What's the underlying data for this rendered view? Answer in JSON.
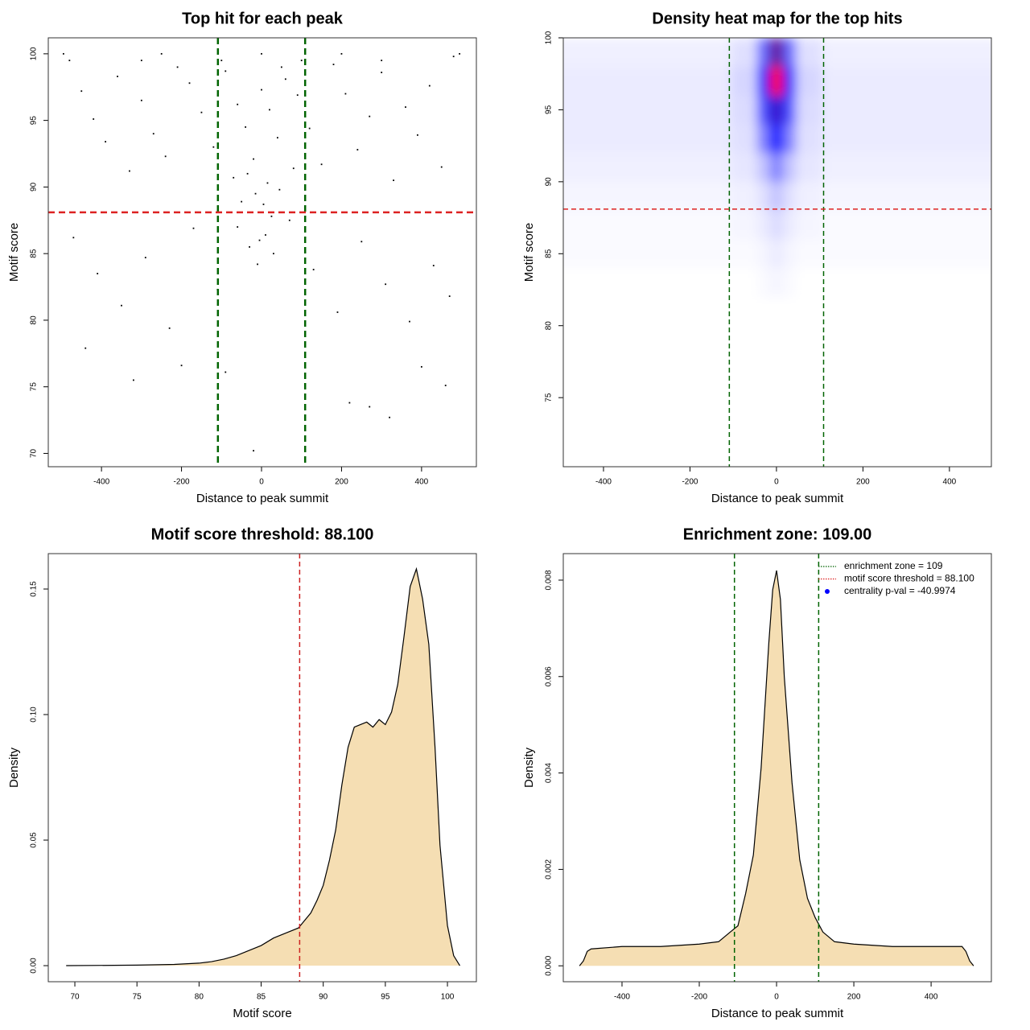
{
  "chart_data": [
    {
      "type": "scatter",
      "title": "Top hit for each peak",
      "xlabel": "Distance to peak summit",
      "ylabel": "Motif score",
      "x": [
        -480,
        -450,
        -420,
        -390,
        -360,
        -330,
        -300,
        -270,
        -240,
        -210,
        -180,
        -150,
        -120,
        -90,
        -60,
        -40,
        -20,
        0,
        20,
        40,
        60,
        90,
        120,
        150,
        180,
        210,
        240,
        270,
        300,
        330,
        360,
        390,
        420,
        450,
        480,
        -470,
        -410,
        -350,
        -290,
        -230,
        -170,
        -110,
        -60,
        -30,
        -10,
        10,
        30,
        70,
        130,
        190,
        250,
        310,
        370,
        430,
        470,
        -15,
        5,
        15,
        -35,
        45,
        -70,
        80,
        -5,
        25,
        -50,
        -440,
        -320,
        -200,
        -90,
        -20,
        220,
        270,
        320,
        400,
        460,
        -495,
        -250,
        0,
        200,
        495,
        -100,
        100,
        -300,
        300,
        50
      ],
      "values": [
        99.5,
        97.2,
        95.1,
        93.4,
        98.3,
        91.2,
        96.5,
        94.0,
        92.3,
        99.0,
        97.8,
        95.6,
        93.0,
        98.7,
        96.2,
        94.5,
        92.1,
        97.3,
        95.8,
        93.7,
        98.1,
        96.9,
        94.4,
        91.7,
        99.2,
        97.0,
        92.8,
        95.3,
        98.6,
        90.5,
        96.0,
        93.9,
        97.6,
        91.5,
        99.8,
        86.2,
        83.5,
        81.1,
        84.7,
        79.4,
        86.9,
        82.3,
        87.0,
        85.5,
        84.2,
        86.4,
        85.0,
        87.5,
        83.8,
        80.6,
        85.9,
        82.7,
        79.9,
        84.1,
        81.8,
        89.5,
        88.7,
        90.3,
        91.0,
        89.8,
        90.7,
        91.4,
        86.0,
        87.8,
        88.9,
        77.9,
        75.5,
        76.6,
        76.1,
        70.2,
        73.8,
        73.5,
        72.7,
        76.5,
        75.1,
        100,
        100,
        100,
        100,
        100,
        99.5,
        99.5,
        99.5,
        99.5,
        99.0
      ],
      "color": "#000000",
      "xlim": [
        -533,
        537
      ],
      "xticks": [
        -400,
        -200,
        0,
        200,
        400
      ],
      "ylim": [
        69.0,
        101.2
      ],
      "yticks": [
        70,
        75,
        80,
        85,
        90,
        95,
        100
      ],
      "vlines": {
        "values": [
          -109,
          109
        ],
        "color": "#006400"
      },
      "hline": {
        "value": 88.1,
        "color": "#dd2222"
      }
    },
    {
      "type": "heatmap",
      "title": "Density heat map for the top hits",
      "xlabel": "Distance to peak summit",
      "ylabel": "Motif score",
      "x": [
        -450,
        -300,
        -150,
        -60,
        -30,
        0,
        30,
        60,
        150,
        300,
        450
      ],
      "y": [
        99,
        97,
        95,
        93,
        91,
        89,
        87,
        85,
        83
      ],
      "z": [
        [
          0.03,
          0.03,
          0.03,
          0.06,
          0.3,
          0.7,
          0.3,
          0.06,
          0.03,
          0.03,
          0.03
        ],
        [
          0.04,
          0.04,
          0.04,
          0.08,
          0.45,
          1.0,
          0.45,
          0.08,
          0.04,
          0.04,
          0.04
        ],
        [
          0.04,
          0.04,
          0.04,
          0.07,
          0.35,
          0.6,
          0.35,
          0.07,
          0.04,
          0.04,
          0.04
        ],
        [
          0.04,
          0.04,
          0.04,
          0.06,
          0.25,
          0.5,
          0.25,
          0.06,
          0.04,
          0.04,
          0.04
        ],
        [
          0.03,
          0.03,
          0.03,
          0.05,
          0.12,
          0.25,
          0.12,
          0.05,
          0.03,
          0.03,
          0.03
        ],
        [
          0.02,
          0.02,
          0.02,
          0.03,
          0.06,
          0.12,
          0.06,
          0.03,
          0.02,
          0.02,
          0.02
        ],
        [
          0.01,
          0.01,
          0.01,
          0.02,
          0.04,
          0.07,
          0.04,
          0.02,
          0.01,
          0.01,
          0.01
        ],
        [
          0.01,
          0.01,
          0.01,
          0.01,
          0.02,
          0.04,
          0.02,
          0.01,
          0.01,
          0.01,
          0.01
        ],
        [
          0,
          0,
          0,
          0,
          0.01,
          0.02,
          0.01,
          0,
          0,
          0,
          0
        ]
      ],
      "zlim": [
        0,
        1
      ],
      "colors": [
        "#ffffff",
        "#0000ff",
        "#ff0000"
      ],
      "xlim": [
        -493,
        497
      ],
      "xticks": [
        -400,
        -200,
        0,
        200,
        400
      ],
      "ylim": [
        70.2,
        100
      ],
      "yticks": [
        75,
        80,
        85,
        90,
        95,
        100
      ],
      "vlines": {
        "values": [
          -109,
          109
        ],
        "color": "#006400"
      },
      "hline": {
        "value": 88.1,
        "color": "#dd2222"
      }
    },
    {
      "type": "area",
      "title": "Motif score threshold: 88.100",
      "xlabel": "Motif score",
      "ylabel": "Density",
      "x": [
        69.3,
        75,
        78,
        80,
        81,
        82,
        83,
        84,
        85,
        86,
        87,
        88,
        89,
        89.5,
        90,
        90.5,
        91,
        91.5,
        92,
        92.5,
        93,
        93.5,
        94,
        94.5,
        95,
        95.5,
        96,
        96.5,
        97,
        97.5,
        98,
        98.5,
        99,
        99.4,
        100,
        100.5,
        101
      ],
      "values": [
        0,
        0.0002,
        0.0005,
        0.001,
        0.0016,
        0.0026,
        0.004,
        0.006,
        0.008,
        0.011,
        0.013,
        0.015,
        0.021,
        0.026,
        0.032,
        0.042,
        0.054,
        0.072,
        0.087,
        0.095,
        0.096,
        0.097,
        0.095,
        0.098,
        0.096,
        0.101,
        0.112,
        0.131,
        0.151,
        0.158,
        0.146,
        0.128,
        0.087,
        0.048,
        0.016,
        0.004,
        0
      ],
      "color": "#f5deb3",
      "xlim": [
        67.86,
        102.33
      ],
      "xticks": [
        70,
        75,
        80,
        85,
        90,
        95,
        100
      ],
      "ylim": [
        -0.0064,
        0.1641
      ],
      "yticks": [
        {
          "value": 0,
          "label": "0.00"
        },
        0.05,
        {
          "value": 0.1,
          "label": "0.10"
        },
        0.15
      ],
      "vlines": {
        "values": [
          88.1
        ],
        "color": "#cc2222"
      }
    },
    {
      "type": "area",
      "title": "Enrichment zone: 109.00",
      "xlabel": "Distance to peak summit",
      "ylabel": "Density",
      "x": [
        -510,
        -500,
        -490,
        -480,
        -400,
        -300,
        -200,
        -150,
        -120,
        -100,
        -80,
        -60,
        -40,
        -20,
        -10,
        0,
        10,
        20,
        40,
        60,
        80,
        100,
        120,
        150,
        200,
        300,
        400,
        480,
        490,
        500,
        510
      ],
      "values": [
        0,
        0.0001,
        0.0003,
        0.00035,
        0.0004,
        0.0004,
        0.00045,
        0.0005,
        0.0007,
        0.00083,
        0.0015,
        0.0023,
        0.0041,
        0.0067,
        0.0078,
        0.0082,
        0.0076,
        0.006,
        0.0038,
        0.0022,
        0.0014,
        0.001,
        0.0007,
        0.0005,
        0.00045,
        0.0004,
        0.0004,
        0.0004,
        0.0003,
        0.0001,
        0
      ],
      "color": "#f5deb3",
      "xlim": [
        -552,
        556
      ],
      "xticks": [
        -400,
        -200,
        0,
        200,
        400
      ],
      "ylim": [
        -0.00033,
        0.00855
      ],
      "yticks": [
        {
          "value": 0,
          "label": "0.000"
        },
        0.002,
        0.004,
        0.006,
        0.008
      ],
      "vlines": {
        "values": [
          -109,
          109
        ],
        "color": "#006400"
      },
      "legend": {
        "position": "top-right",
        "entries": [
          {
            "label": "enrichment zone = 109",
            "color": "#006400",
            "style": "dotted"
          },
          {
            "label": "motif score threshold = 88.100",
            "color": "#dd2222",
            "style": "dotted"
          },
          {
            "label": "centrality p-val = -40.9974",
            "color": "#0000ff",
            "style": "point"
          }
        ]
      }
    }
  ]
}
